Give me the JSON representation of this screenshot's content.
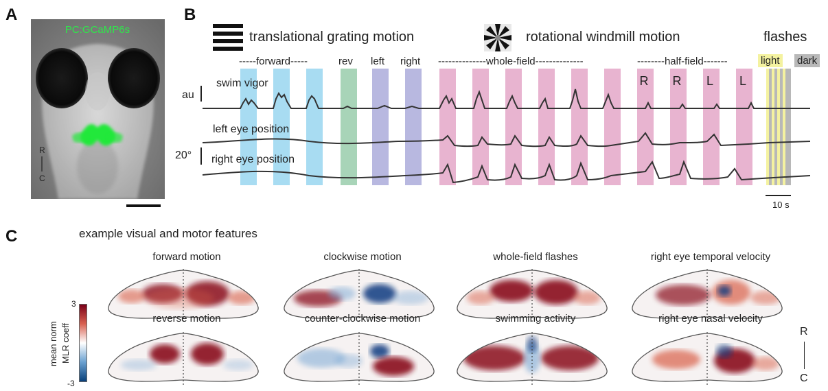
{
  "panels": {
    "a": "A",
    "b": "B",
    "c": "C"
  },
  "panel_a": {
    "label": "PC:GCaMP6s",
    "axis_r": "R",
    "axis_c": "C"
  },
  "panel_b": {
    "headers": {
      "translational": "translational grating motion",
      "rotational": "rotational windmill motion",
      "flashes": "flashes"
    },
    "groups": {
      "forward": "-----forward-----",
      "rev": "rev",
      "left": "left",
      "right": "right",
      "whole_field": "--------------whole-field--------------",
      "half_field": "--------half-field-------",
      "light": "light",
      "dark": "dark"
    },
    "half_field_sides": [
      "R",
      "R",
      "L",
      "L"
    ],
    "scale_au": "au",
    "scale_deg": "20°",
    "scale_time": "10 s",
    "traces": {
      "swim": "swim vigor",
      "left_eye": "left eye position",
      "right_eye": "right eye position"
    },
    "colors": {
      "forward": "#a8dcf2",
      "reverse": "#a8d4b8",
      "lateral": "#b8b8e0",
      "rotation": "#e8b4d0",
      "light": "#f4f2a0",
      "dark": "#b8b8b8"
    }
  },
  "panel_c": {
    "title": "example visual and motor features",
    "colorbar_label_1": "mean norm",
    "colorbar_label_2": "MLR coeff",
    "colorbar_max": "3",
    "colorbar_min": "-3",
    "axis_r": "R",
    "axis_c": "C",
    "maps": [
      {
        "title": "forward motion"
      },
      {
        "title": "clockwise motion"
      },
      {
        "title": "whole-field flashes"
      },
      {
        "title": "right eye temporal velocity"
      },
      {
        "title": "reverse motion"
      },
      {
        "title": "counter-clockwise motion"
      },
      {
        "title": "swimming activity"
      },
      {
        "title": "right eye nasal velocity"
      }
    ]
  }
}
